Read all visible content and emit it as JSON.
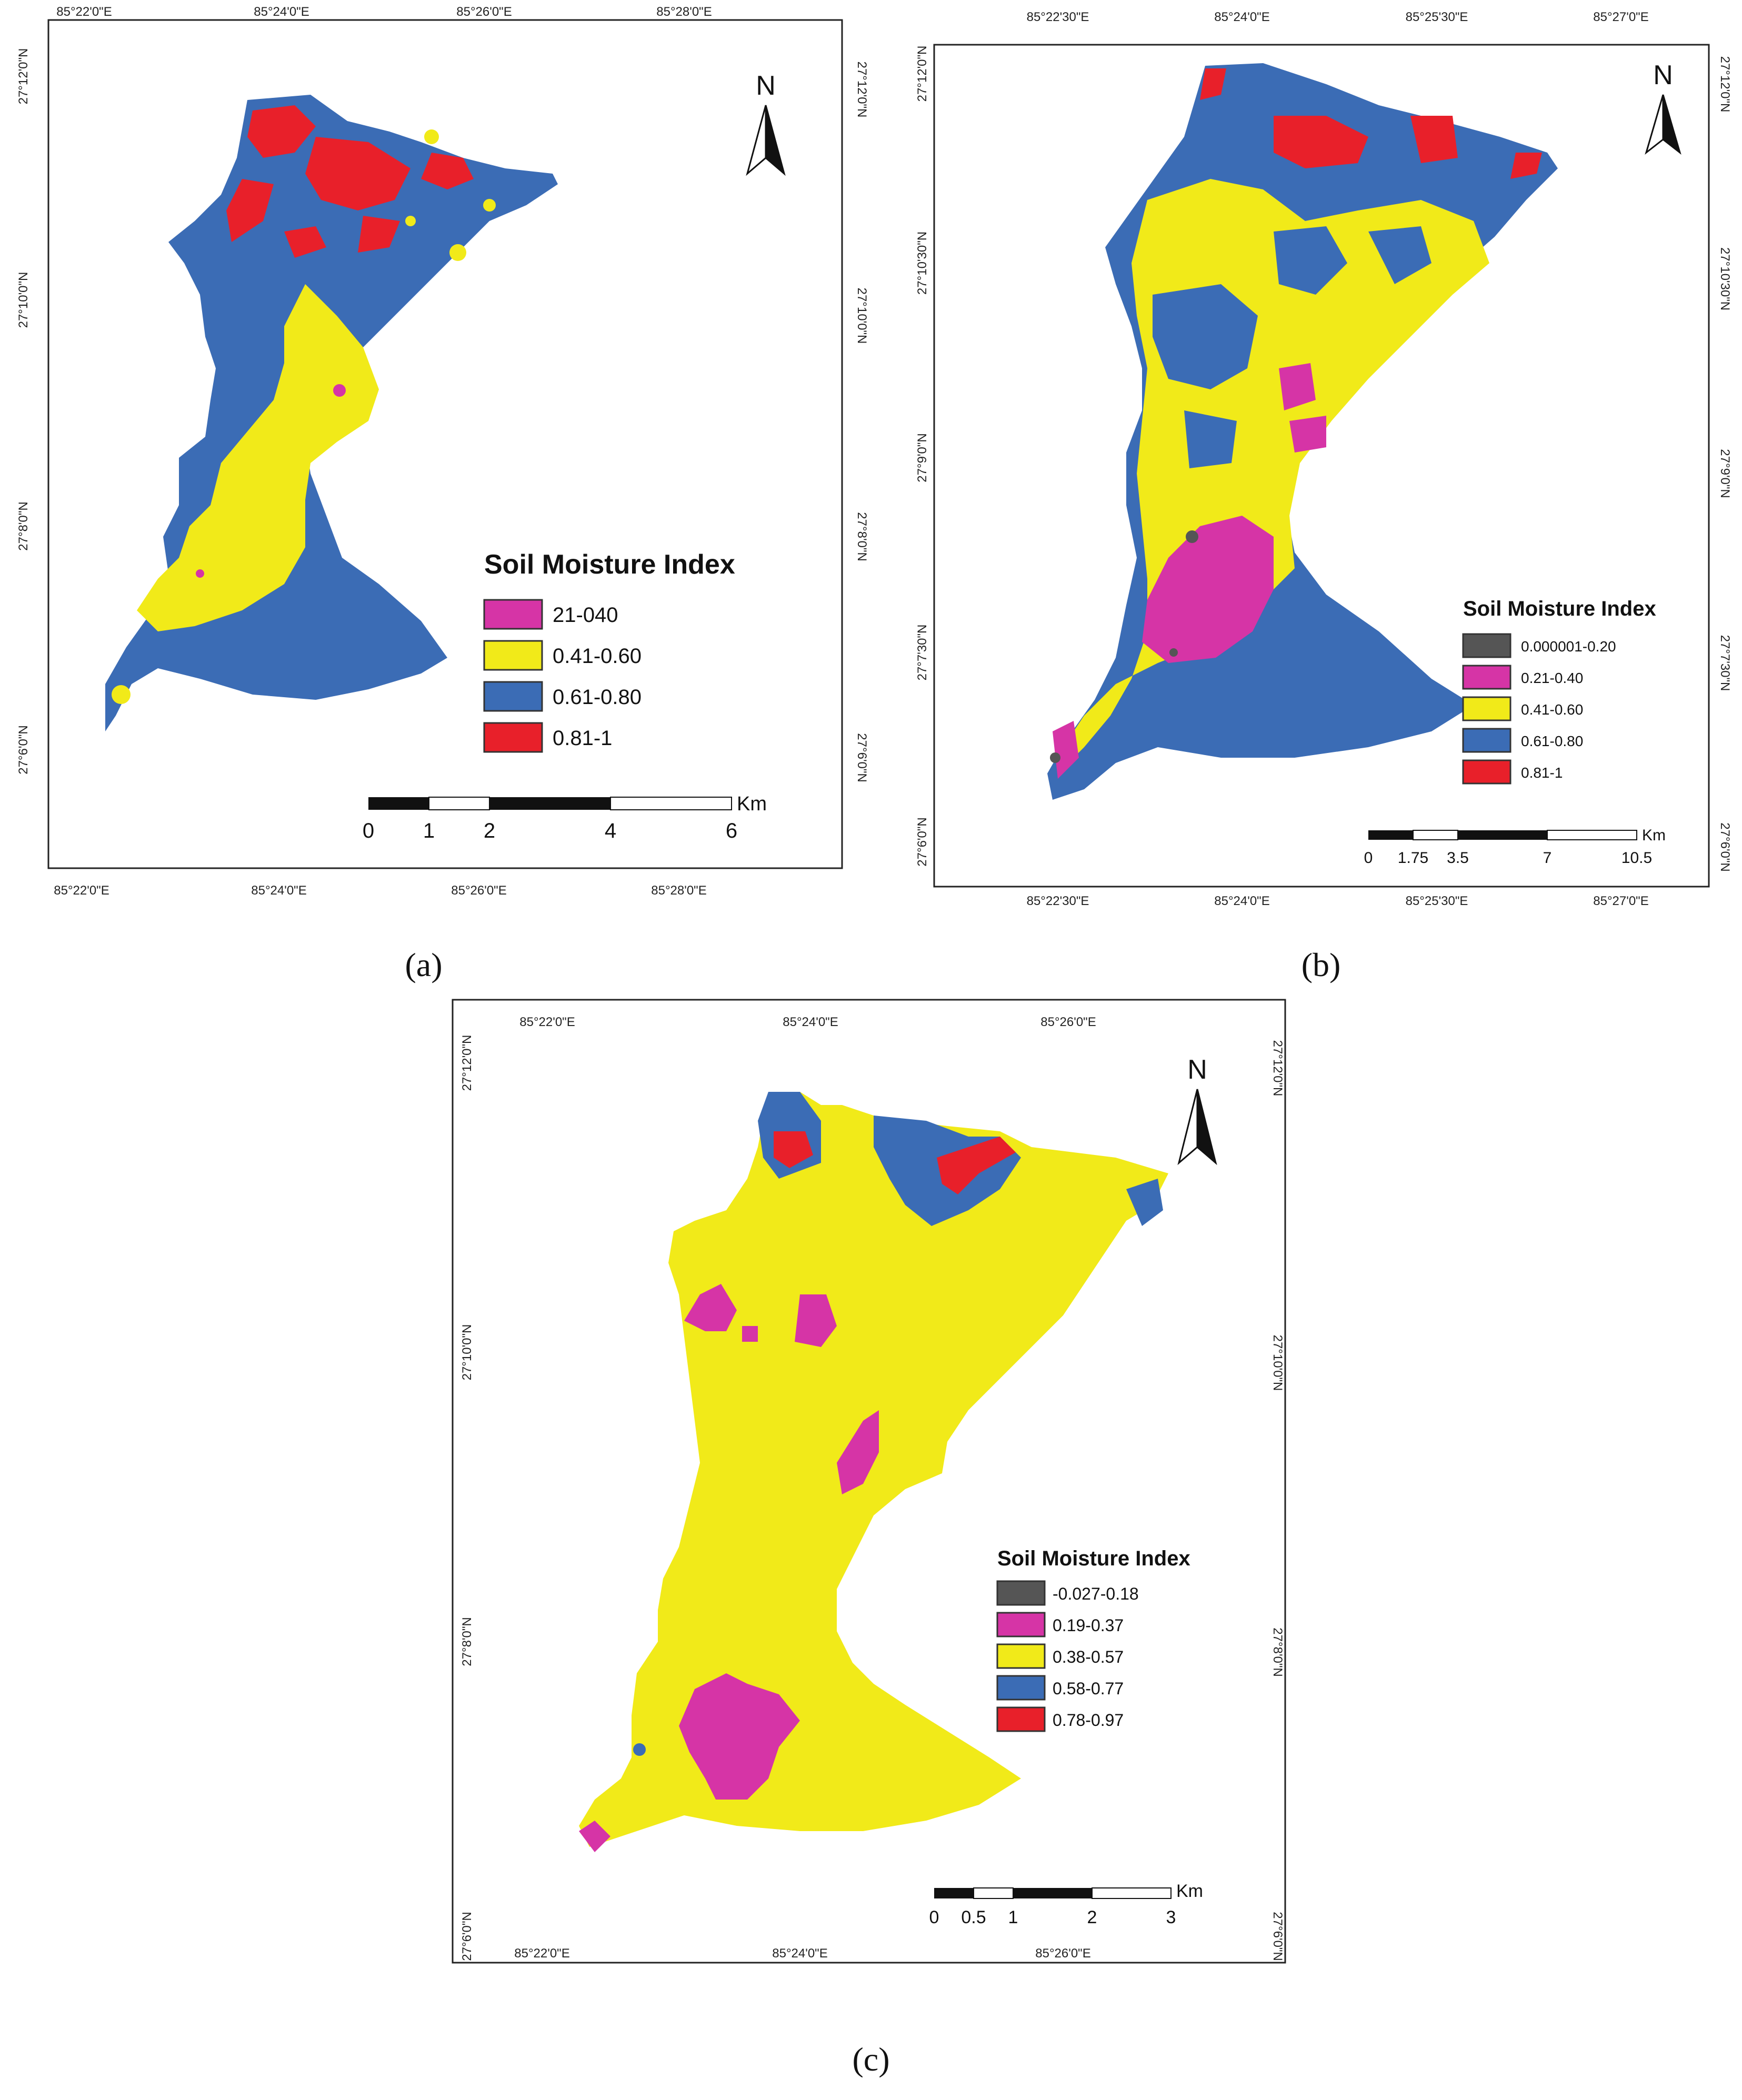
{
  "colors": {
    "red": "#e8202a",
    "blue": "#3b6cb5",
    "yellow": "#f1ea19",
    "magenta": "#d634a6",
    "gray": "#555555",
    "frame": "#222222"
  },
  "panels": {
    "a": {
      "label": "(a)",
      "north": "N",
      "top_lon": [
        "85°22'0\"E",
        "85°24'0\"E",
        "85°26'0\"E",
        "85°28'0\"E"
      ],
      "bottom_lon": [
        "85°22'0\"E",
        "85°24'0\"E",
        "85°26'0\"E",
        "85°28'0\"E"
      ],
      "left_lat": [
        "27°12'0\"N",
        "27°10'0\"N",
        "27°8'0\"N",
        "27°6'0\"N"
      ],
      "right_lat": [
        "27°12'0\"N",
        "27°10'0\"N",
        "27°8'0\"N",
        "27°6'0\"N"
      ],
      "legend": {
        "title": "Soil Moisture Index",
        "items": [
          {
            "label": "21-040",
            "color": "#d634a6"
          },
          {
            "label": "0.41-0.60",
            "color": "#f1ea19"
          },
          {
            "label": "0.61-0.80",
            "color": "#3b6cb5"
          },
          {
            "label": "0.81-1",
            "color": "#e8202a"
          }
        ]
      },
      "scale": {
        "unit": "Km",
        "ticks": [
          "0",
          "1",
          "2",
          "4",
          "6"
        ]
      }
    },
    "b": {
      "label": "(b)",
      "north": "N",
      "top_lon": [
        "85°22'30\"E",
        "85°24'0\"E",
        "85°25'30\"E",
        "85°27'0\"E"
      ],
      "bottom_lon": [
        "85°22'30\"E",
        "85°24'0\"E",
        "85°25'30\"E",
        "85°27'0\"E"
      ],
      "left_lat": [
        "27°12'0\"N",
        "27°10'30\"N",
        "27°9'0\"N",
        "27°7'30\"N",
        "27°6'0\"N"
      ],
      "right_lat": [
        "27°12'0\"N",
        "27°10'30\"N",
        "27°9'0\"N",
        "27°7'30\"N",
        "27°6'0\"N"
      ],
      "legend": {
        "title": "Soil Moisture Index",
        "items": [
          {
            "label": "0.000001-0.20",
            "color": "#555555"
          },
          {
            "label": "0.21-0.40",
            "color": "#d634a6"
          },
          {
            "label": "0.41-0.60",
            "color": "#f1ea19"
          },
          {
            "label": "0.61-0.80",
            "color": "#3b6cb5"
          },
          {
            "label": "0.81-1",
            "color": "#e8202a"
          }
        ]
      },
      "scale": {
        "unit": "Km",
        "ticks": [
          "0",
          "1.75",
          "3.5",
          "7",
          "10.5"
        ]
      }
    },
    "c": {
      "label": "(c)",
      "north": "N",
      "top_lon": [
        "85°22'0\"E",
        "85°24'0\"E",
        "85°26'0\"E"
      ],
      "bottom_lon": [
        "85°22'0\"E",
        "85°24'0\"E",
        "85°26'0\"E"
      ],
      "left_lat": [
        "27°12'0\"N",
        "27°10'0\"N",
        "27°8'0\"N",
        "27°6'0\"N"
      ],
      "right_lat": [
        "27°12'0\"N",
        "27°10'0\"N",
        "27°8'0\"N",
        "27°6'0\"N"
      ],
      "legend": {
        "title": "Soil Moisture Index",
        "items": [
          {
            "label": "-0.027-0.18",
            "color": "#555555"
          },
          {
            "label": "0.19-0.37",
            "color": "#d634a6"
          },
          {
            "label": "0.38-0.57",
            "color": "#f1ea19"
          },
          {
            "label": "0.58-0.77",
            "color": "#3b6cb5"
          },
          {
            "label": "0.78-0.97",
            "color": "#e8202a"
          }
        ]
      },
      "scale": {
        "unit": "Km",
        "ticks": [
          "0",
          "0.5",
          "1",
          "2",
          "3"
        ]
      }
    }
  }
}
